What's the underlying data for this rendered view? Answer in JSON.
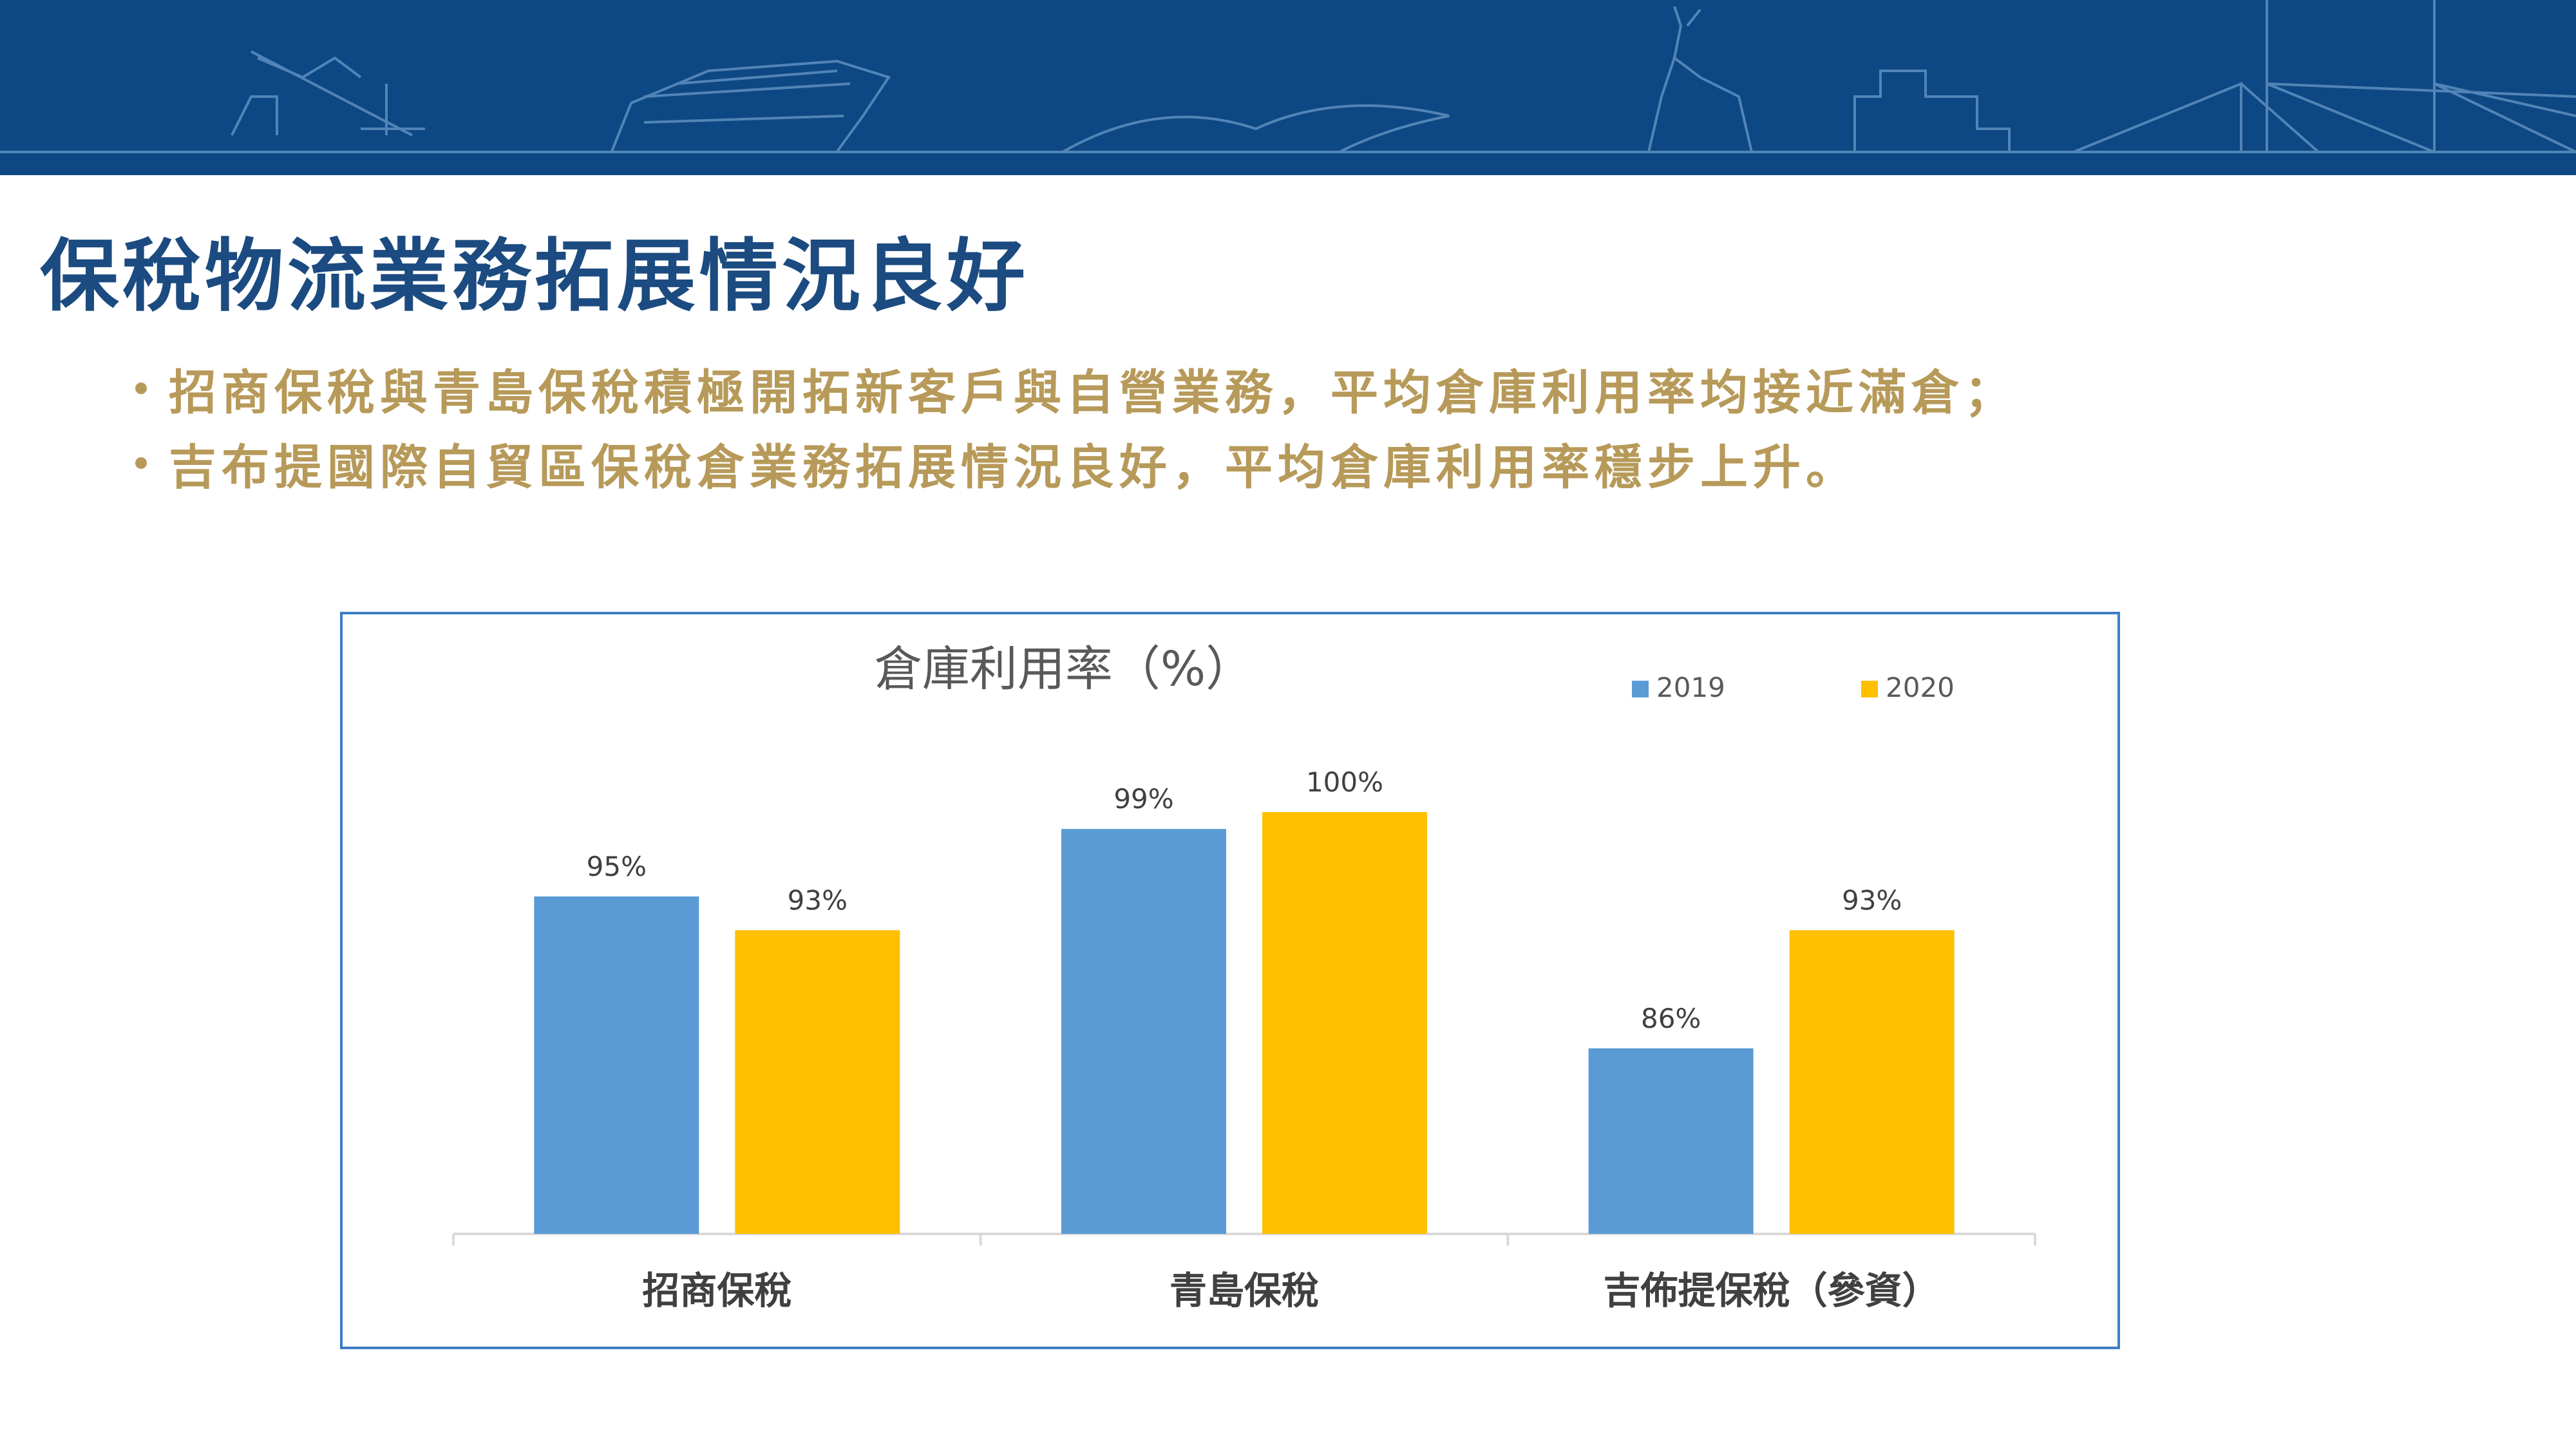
{
  "slide": {
    "title": "保稅物流業務拓展情況良好",
    "bullets": [
      "招商保稅與青島保稅積極開拓新客戶與自營業務，平均倉庫利用率均接近滿倉；",
      "吉布提國際自貿區保稅倉業務拓展情況良好，平均倉庫利用率穩步上升。"
    ]
  },
  "colors": {
    "banner": "#0d4884",
    "title": "#1b4b80",
    "bullet_text": "#b79a5a",
    "series_2019": "#5b9bd5",
    "series_2020": "#ffc000"
  },
  "chart_data": {
    "type": "bar",
    "title": "倉庫利用率（%）",
    "xlabel": "",
    "ylabel": "",
    "categories": [
      "招商保稅",
      "青島保稅",
      "吉佈提保稅（參資）"
    ],
    "series": [
      {
        "name": "2019",
        "values": [
          95,
          99,
          86
        ],
        "labels": [
          "95%",
          "99%",
          "86%"
        ]
      },
      {
        "name": "2020",
        "values": [
          93,
          100,
          93
        ],
        "labels": [
          "93%",
          "100%",
          "93%"
        ]
      }
    ],
    "ylim": [
      75,
      100
    ],
    "grid": false,
    "legend": "top-right"
  }
}
